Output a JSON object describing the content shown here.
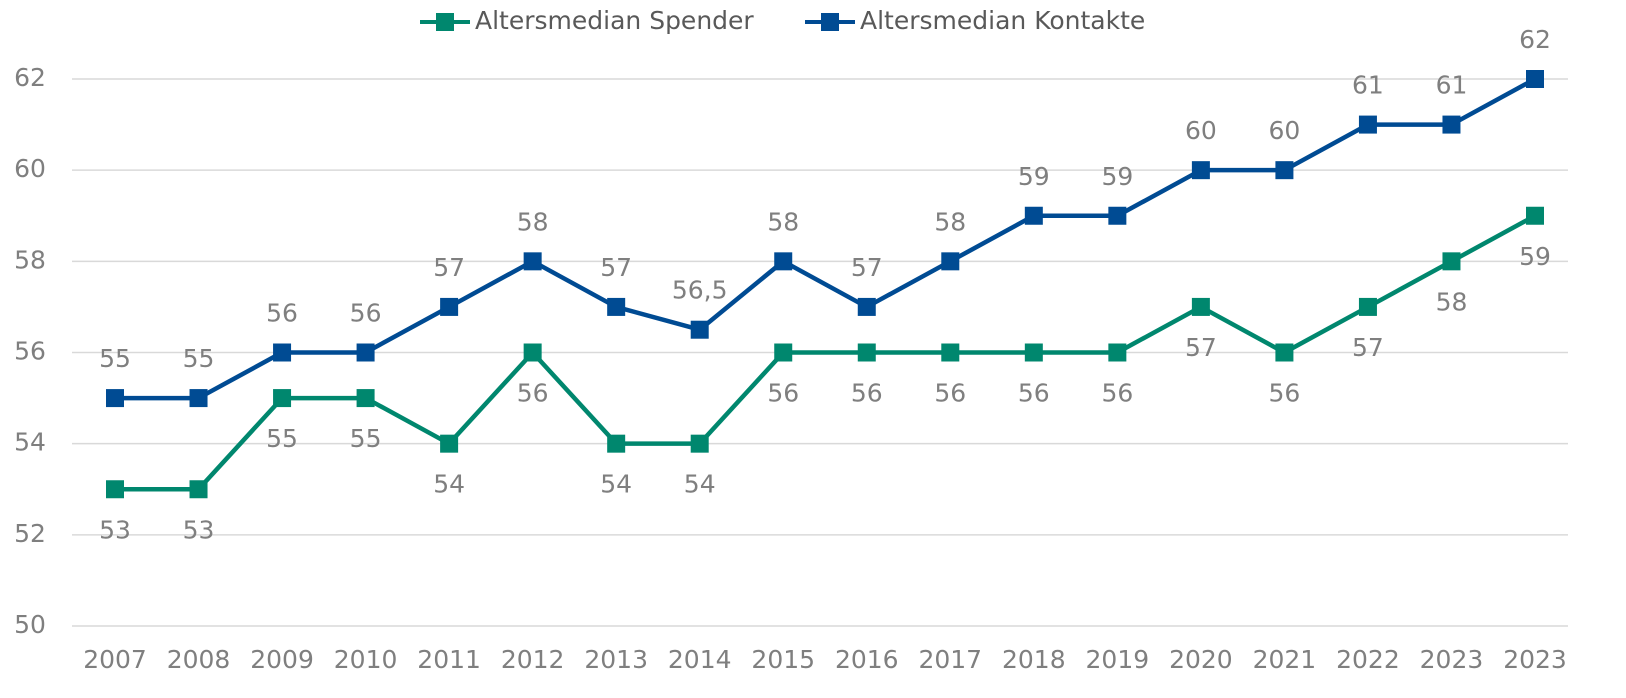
{
  "chart_data": {
    "type": "line",
    "categories": [
      "2007",
      "2008",
      "2009",
      "2010",
      "2011",
      "2012",
      "2013",
      "2014",
      "2015",
      "2016",
      "2017",
      "2018",
      "2019",
      "2020",
      "2021",
      "2022",
      "2023",
      "2023"
    ],
    "series": [
      {
        "name": "Altersmedian Spender",
        "color": "#00876e",
        "label_position": "below",
        "values": [
          53,
          53,
          55,
          55,
          54,
          56,
          54,
          54,
          56,
          56,
          56,
          56,
          56,
          57,
          56,
          57,
          58,
          59
        ]
      },
      {
        "name": "Altersmedian Kontakte",
        "color": "#004b93",
        "label_position": "above",
        "values": [
          55,
          55,
          56,
          56,
          57,
          58,
          57,
          56.5,
          58,
          57,
          58,
          59,
          59,
          60,
          60,
          61,
          61,
          62
        ],
        "value_labels": [
          "55",
          "55",
          "56",
          "56",
          "57",
          "58",
          "57",
          "56,5",
          "58",
          "57",
          "58",
          "59",
          "59",
          "60",
          "60",
          "61",
          "61",
          "62"
        ]
      }
    ],
    "ylim": [
      50,
      62
    ],
    "yticks": [
      50,
      52,
      54,
      56,
      58,
      60,
      62
    ],
    "grid": true,
    "legend": "top"
  }
}
